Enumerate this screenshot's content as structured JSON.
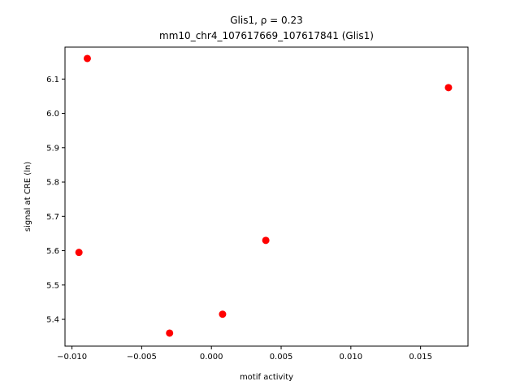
{
  "chart_data": {
    "type": "scatter",
    "title_line1": "Glis1, ρ = 0.23",
    "title_line2": "mm10_chr4_107617669_107617841 (Glis1)",
    "xlabel": "motif activity",
    "ylabel": "signal at CRE (ln)",
    "xlim": [
      -0.0105,
      0.0184
    ],
    "ylim": [
      5.322,
      6.193
    ],
    "xticks": [
      -0.01,
      -0.005,
      0.0,
      0.005,
      0.01,
      0.015
    ],
    "xtick_labels": [
      "−0.010",
      "−0.005",
      "0.000",
      "0.005",
      "0.010",
      "0.015"
    ],
    "yticks": [
      5.4,
      5.5,
      5.6,
      5.7,
      5.8,
      5.9,
      6.0,
      6.1
    ],
    "ytick_labels": [
      "5.4",
      "5.5",
      "5.6",
      "5.7",
      "5.8",
      "5.9",
      "6.0",
      "6.1"
    ],
    "grid": false,
    "point_color": "#ff0000",
    "points": [
      {
        "x": -0.0089,
        "y": 6.16
      },
      {
        "x": -0.0095,
        "y": 5.595
      },
      {
        "x": -0.003,
        "y": 5.36
      },
      {
        "x": 0.0008,
        "y": 5.415
      },
      {
        "x": 0.0039,
        "y": 5.63
      },
      {
        "x": 0.017,
        "y": 6.075
      }
    ]
  }
}
